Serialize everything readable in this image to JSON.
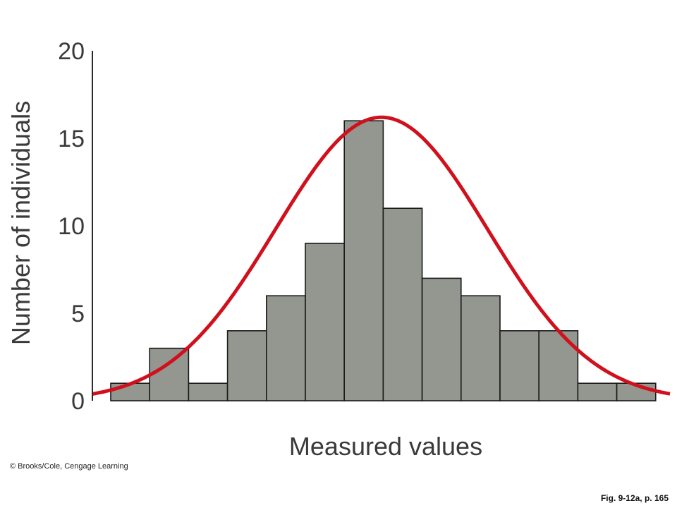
{
  "chart_data": {
    "type": "bar",
    "title": "",
    "xlabel": "Measured values",
    "ylabel": "Number of individuals",
    "ylim": [
      0,
      20
    ],
    "yticks": [
      0,
      5,
      10,
      15,
      20
    ],
    "values": [
      1,
      3,
      1,
      4,
      6,
      9,
      16,
      11,
      7,
      6,
      4,
      4,
      1,
      1
    ],
    "overlay": {
      "type": "normal-curve",
      "peak": 16.2,
      "color": "#d0101c"
    },
    "bar_color": "#949790",
    "grid": false,
    "legend": "none"
  },
  "credit": "© Brooks/Cole, Cengage Learning",
  "figure_ref": "Fig. 9-12a, p. 165"
}
